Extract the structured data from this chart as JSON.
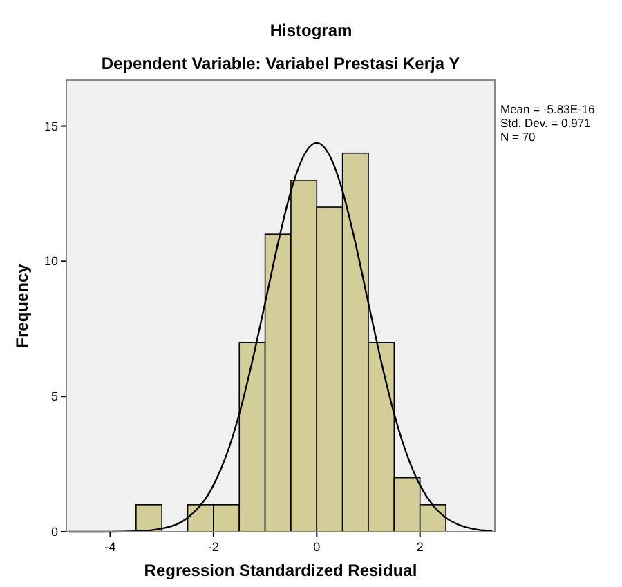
{
  "chart_data": {
    "type": "histogram",
    "title": "Histogram",
    "subtitle": "Dependent Variable: Variabel Prestasi Kerja Y",
    "xlabel": "Regression Standardized Residual",
    "ylabel": "Frequency",
    "bins": [
      -3.5,
      -3,
      -2.5,
      -2,
      -1.5,
      -1,
      -0.5,
      0,
      0.5,
      1,
      1.5,
      2,
      2.5
    ],
    "values": [
      1,
      0,
      1,
      1,
      7,
      11,
      13,
      12,
      14,
      7,
      2,
      1
    ],
    "color": "#d3ce97",
    "series": [
      {
        "type": "line",
        "color": "#000000",
        "x": [
          -4.8,
          -4,
          -3.5,
          -3,
          -2.5,
          -2,
          -1.75,
          -1.5,
          -1.25,
          -1,
          -0.75,
          -0.5,
          -0.25,
          0,
          0.25,
          0.5,
          0.75,
          1,
          1.25,
          1.5,
          1.75,
          2,
          2.25,
          2.5,
          2.75,
          3,
          3.25,
          3.4
        ],
        "values": [
          0,
          0,
          0.02,
          0.12,
          0.52,
          1.72,
          2.83,
          4.36,
          6.29,
          8.46,
          10.67,
          12.6,
          13.91,
          14.38,
          13.91,
          12.6,
          10.67,
          8.46,
          6.29,
          4.36,
          2.83,
          1.72,
          0.98,
          0.52,
          0.26,
          0.12,
          0.05,
          0.03
        ]
      }
    ],
    "xlim": [
      -4.85,
      3.45
    ],
    "ylim": [
      0,
      16.7
    ],
    "xticks": [
      -4,
      -2,
      0,
      2
    ],
    "yticks": [
      0,
      5,
      10,
      15
    ],
    "grid": false,
    "annotations": [
      "Mean = -5.83E-16",
      "Std. Dev. = 0.971",
      "N = 70"
    ]
  }
}
